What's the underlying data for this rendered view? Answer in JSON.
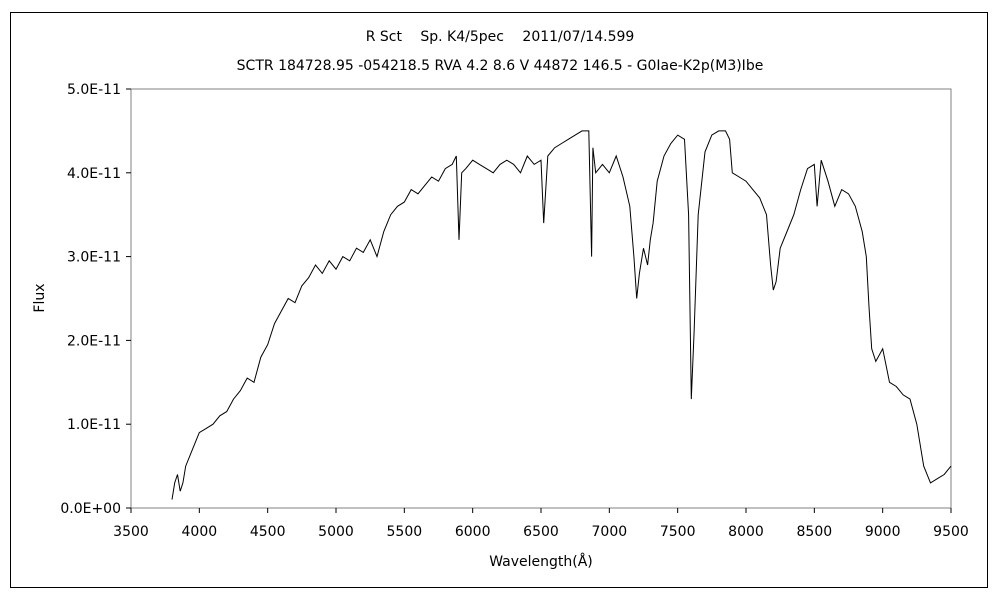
{
  "chart_data": {
    "type": "line",
    "title": "R Sct　 Sp. K4/5pec　 2011/07/14.599",
    "subtitle": "SCTR 184728.95 -054218.5 RVA 4.2 8.6 V 44872 146.5 - G0Iae-K2p(M3)Ibe",
    "xlabel": "Wavelength(Å)",
    "ylabel": "Flux",
    "xlim": [
      3500,
      9500
    ],
    "ylim": [
      0,
      5e-11
    ],
    "x_ticks": [
      "3500",
      "4000",
      "4500",
      "5000",
      "5500",
      "6000",
      "6500",
      "7000",
      "7500",
      "8000",
      "8500",
      "9000",
      "9500"
    ],
    "y_ticks": [
      "0.0E+00",
      "1.0E-11",
      "2.0E-11",
      "3.0E-11",
      "4.0E-11",
      "5.0E-11"
    ],
    "grid": false,
    "line_color": "#000000",
    "series": [
      {
        "x": [
          3800,
          3820,
          3840,
          3860,
          3880,
          3900,
          3950,
          4000,
          4050,
          4100,
          4150,
          4200,
          4250,
          4300,
          4350,
          4400,
          4450,
          4500,
          4550,
          4600,
          4650,
          4700,
          4750,
          4800,
          4850,
          4900,
          4950,
          5000,
          5050,
          5100,
          5150,
          5200,
          5250,
          5300,
          5350,
          5400,
          5450,
          5500,
          5550,
          5600,
          5650,
          5700,
          5750,
          5800,
          5850,
          5880,
          5900,
          5920,
          5950,
          6000,
          6050,
          6100,
          6150,
          6200,
          6250,
          6300,
          6350,
          6400,
          6450,
          6500,
          6520,
          6550,
          6600,
          6650,
          6700,
          6750,
          6800,
          6850,
          6870,
          6880,
          6900,
          6950,
          7000,
          7050,
          7100,
          7150,
          7180,
          7200,
          7220,
          7250,
          7280,
          7300,
          7320,
          7350,
          7400,
          7450,
          7500,
          7550,
          7580,
          7600,
          7620,
          7650,
          7700,
          7750,
          7800,
          7850,
          7880,
          7900,
          7950,
          8000,
          8050,
          8100,
          8150,
          8180,
          8200,
          8220,
          8250,
          8300,
          8350,
          8400,
          8450,
          8500,
          8520,
          8550,
          8600,
          8650,
          8700,
          8750,
          8800,
          8850,
          8880,
          8900,
          8920,
          8950,
          9000,
          9050,
          9100,
          9150,
          9200,
          9250,
          9300,
          9350,
          9400,
          9450,
          9500
        ],
        "y": [
          1e-12,
          3e-12,
          4e-12,
          2e-12,
          3e-12,
          5e-12,
          7e-12,
          9e-12,
          9.5e-12,
          1e-11,
          1.1e-11,
          1.15e-11,
          1.3e-11,
          1.4e-11,
          1.55e-11,
          1.5e-11,
          1.8e-11,
          1.95e-11,
          2.2e-11,
          2.35e-11,
          2.5e-11,
          2.45e-11,
          2.65e-11,
          2.75e-11,
          2.9e-11,
          2.8e-11,
          2.95e-11,
          2.85e-11,
          3e-11,
          2.95e-11,
          3.1e-11,
          3.05e-11,
          3.2e-11,
          3e-11,
          3.3e-11,
          3.5e-11,
          3.6e-11,
          3.65e-11,
          3.8e-11,
          3.75e-11,
          3.85e-11,
          3.95e-11,
          3.9e-11,
          4.05e-11,
          4.1e-11,
          4.2e-11,
          3.2e-11,
          4e-11,
          4.05e-11,
          4.15e-11,
          4.1e-11,
          4.05e-11,
          4e-11,
          4.1e-11,
          4.15e-11,
          4.1e-11,
          4e-11,
          4.2e-11,
          4.1e-11,
          4.15e-11,
          3.4e-11,
          4.2e-11,
          4.3e-11,
          4.35e-11,
          4.4e-11,
          4.45e-11,
          4.5e-11,
          4.5e-11,
          3e-11,
          4.3e-11,
          4e-11,
          4.1e-11,
          4e-11,
          4.2e-11,
          3.95e-11,
          3.6e-11,
          3e-11,
          2.5e-11,
          2.8e-11,
          3.1e-11,
          2.9e-11,
          3.2e-11,
          3.4e-11,
          3.9e-11,
          4.2e-11,
          4.35e-11,
          4.45e-11,
          4.4e-11,
          3.5e-11,
          1.3e-11,
          2.1e-11,
          3.5e-11,
          4.25e-11,
          4.45e-11,
          4.5e-11,
          4.5e-11,
          4.4e-11,
          4e-11,
          3.95e-11,
          3.9e-11,
          3.8e-11,
          3.7e-11,
          3.5e-11,
          2.9e-11,
          2.6e-11,
          2.7e-11,
          3.1e-11,
          3.3e-11,
          3.5e-11,
          3.8e-11,
          4.05e-11,
          4.1e-11,
          3.6e-11,
          4.15e-11,
          3.9e-11,
          3.6e-11,
          3.8e-11,
          3.75e-11,
          3.6e-11,
          3.3e-11,
          3e-11,
          2.4e-11,
          1.9e-11,
          1.75e-11,
          1.9e-11,
          1.5e-11,
          1.45e-11,
          1.35e-11,
          1.3e-11,
          1e-11,
          5e-12,
          3e-12,
          3.5e-12,
          4e-12,
          5e-12
        ]
      }
    ]
  }
}
